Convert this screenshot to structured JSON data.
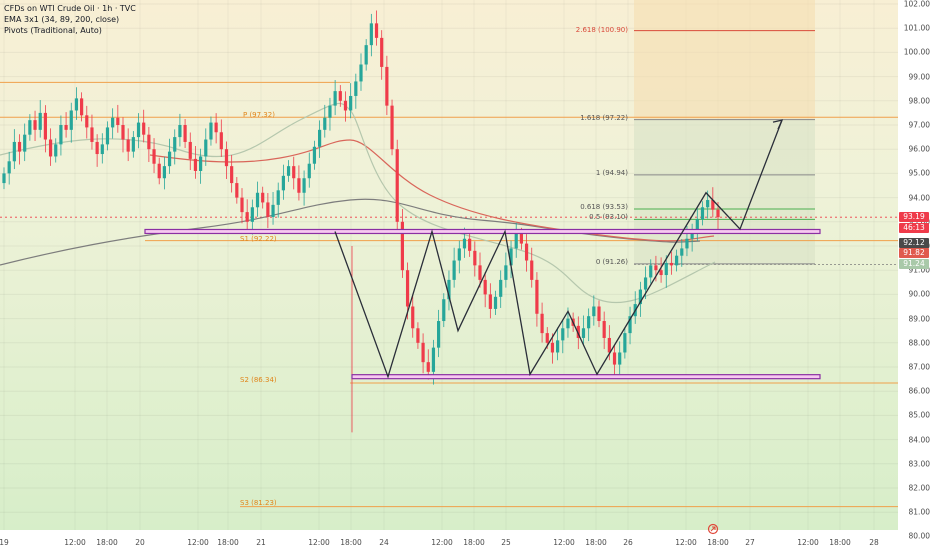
{
  "legend": {
    "symbol": "CFDs on WTI Crude Oil · 1h · TVC",
    "ema": "EMA 3x1 (34, 89, 200, close)",
    "pivots": "Pivots (Traditional, Auto)"
  },
  "yaxis": {
    "ticks": [
      "102.00",
      "101.00",
      "100.00",
      "99.00",
      "98.00",
      "97.00",
      "96.00",
      "95.00",
      "94.00",
      "93.00",
      "92.00",
      "91.00",
      "90.00",
      "89.00",
      "88.00",
      "87.00",
      "86.00",
      "85.00",
      "84.00",
      "83.00",
      "82.00",
      "81.00",
      "80.00"
    ],
    "last_price": "93.19",
    "countdown": "46:13",
    "ema_short_value": "92.12",
    "ema_mid_value": "91.82",
    "ema_long_value": "91.24"
  },
  "xaxis": {
    "ticks": [
      "19",
      "12:00",
      "18:00",
      "20",
      "12:00",
      "18:00",
      "21",
      "12:00",
      "18:00",
      "24",
      "12:00",
      "18:00",
      "25",
      "12:00",
      "18:00",
      "26",
      "12:00",
      "18:00",
      "27",
      "12:00",
      "18:00",
      "28"
    ]
  },
  "fib_labels": {
    "f2618": "2.618 (100.90)",
    "f1618": "1.618 (97.22)",
    "f1": "1 (94.94)",
    "f0618": "0.618 (93.53)",
    "f05": "0.5 (93.10)",
    "f0": "0 (91.26)"
  },
  "pivot_labels": {
    "p": "P (97.32)",
    "s1": "S1 (92.22)",
    "s2": "S2 (86.34)",
    "s3": "S3 (81.23)"
  },
  "chart_data": {
    "type": "candlestick",
    "instrument": "CFDs on WTI Crude Oil",
    "interval": "1h",
    "ylim": [
      79.6,
      102.3
    ],
    "levels": {
      "pivot_p": 97.32,
      "pivot_s1": 92.22,
      "pivot_s2": 86.34,
      "pivot_s3": 81.23,
      "fib_2618": 100.9,
      "fib_1618": 97.22,
      "fib_1": 94.94,
      "fib_0618": 93.53,
      "fib_05": 93.1,
      "fib_0": 91.26,
      "resistance_zone": 92.6,
      "support_zone": 86.6
    },
    "pattern_path": [
      [
        335,
        92.6
      ],
      [
        388,
        86.6
      ],
      [
        432,
        92.6
      ],
      [
        458,
        88.5
      ],
      [
        505,
        92.6
      ],
      [
        530,
        86.7
      ],
      [
        568,
        89.3
      ],
      [
        597,
        86.7
      ],
      [
        706,
        94.2
      ],
      [
        740,
        92.7
      ],
      [
        782,
        97.2
      ]
    ],
    "colors": {
      "up": "#26a69a",
      "down": "#ef3b4a",
      "ema_fast": "#b5c7ad",
      "ema_mid": "#d9665a",
      "ema_slow": "#7d7d7d"
    }
  }
}
